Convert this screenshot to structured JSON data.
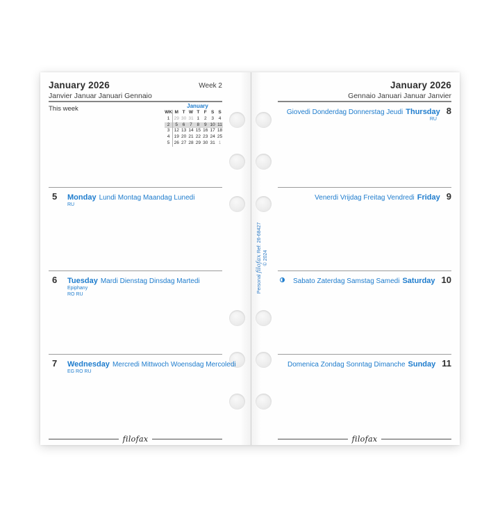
{
  "left_page": {
    "title": "January 2026",
    "subtitle": "Janvier Januar Januari Gennaio",
    "week_label": "Week 2",
    "this_week_label": "This week",
    "mini_calendar": {
      "title": "January",
      "headers": [
        "WK",
        "M",
        "T",
        "W",
        "T",
        "F",
        "S",
        "S"
      ],
      "rows": [
        {
          "wk": "1",
          "days": [
            "29",
            "30",
            "31",
            "1",
            "2",
            "3",
            "4"
          ],
          "muted": [
            true,
            true,
            true,
            false,
            false,
            false,
            false
          ],
          "highlight": false
        },
        {
          "wk": "2",
          "days": [
            "5",
            "6",
            "7",
            "8",
            "9",
            "10",
            "11"
          ],
          "muted": [
            false,
            false,
            false,
            false,
            false,
            false,
            false
          ],
          "highlight": true
        },
        {
          "wk": "3",
          "days": [
            "12",
            "13",
            "14",
            "15",
            "16",
            "17",
            "18"
          ],
          "muted": [
            false,
            false,
            false,
            false,
            false,
            false,
            false
          ],
          "highlight": false
        },
        {
          "wk": "4",
          "days": [
            "19",
            "20",
            "21",
            "22",
            "23",
            "24",
            "25"
          ],
          "muted": [
            false,
            false,
            false,
            false,
            false,
            false,
            false
          ],
          "highlight": false
        },
        {
          "wk": "5",
          "days": [
            "26",
            "27",
            "28",
            "29",
            "30",
            "31",
            "1"
          ],
          "muted": [
            false,
            false,
            false,
            false,
            false,
            false,
            true
          ],
          "highlight": false
        }
      ]
    },
    "days": [
      {
        "number": "5",
        "name": "Monday",
        "other_names": "Lundi Montag Maandag Lunedi",
        "notes": [
          "RU"
        ],
        "moon": false
      },
      {
        "number": "6",
        "name": "Tuesday",
        "other_names": "Mardi Dienstag Dinsdag Martedi",
        "notes": [
          "Epiphany",
          "RO RU"
        ],
        "moon": false
      },
      {
        "number": "7",
        "name": "Wednesday",
        "other_names": "Mercredi Mittwoch Woensdag Mercoledi",
        "notes": [
          "EG RO RU"
        ],
        "moon": false
      }
    ],
    "footer_logo": "filofax"
  },
  "right_page": {
    "title": "January 2026",
    "subtitle": "Gennaio Januari Januar Janvier",
    "days": [
      {
        "number": "8",
        "name": "Thursday",
        "other_names": "Giovedi Donderdag Donnerstag Jeudi",
        "notes": [
          "RU"
        ],
        "moon": false
      },
      {
        "number": "9",
        "name": "Friday",
        "other_names": "Venerdi Vrijdag Freitag Vendredi",
        "notes": [],
        "moon": false
      },
      {
        "number": "10",
        "name": "Saturday",
        "other_names": "Sabato Zaterdag Samstag Samedi",
        "notes": [],
        "moon": true
      },
      {
        "number": "11",
        "name": "Sunday",
        "other_names": "Domenica Zondag Sonntag Dimanche",
        "notes": [],
        "moon": false
      }
    ],
    "footer_logo": "filofax"
  },
  "spine": {
    "prefix": "Personal",
    "brand": "filofax",
    "ref": "Ref: 26-68427",
    "copyright": "© 2024"
  },
  "icons": {
    "moon": "moon-first-quarter-icon"
  },
  "colors": {
    "accent_blue": "#1e7ccd",
    "highlight_gray": "#d9d9d9",
    "ink": "#2e2e2e"
  }
}
